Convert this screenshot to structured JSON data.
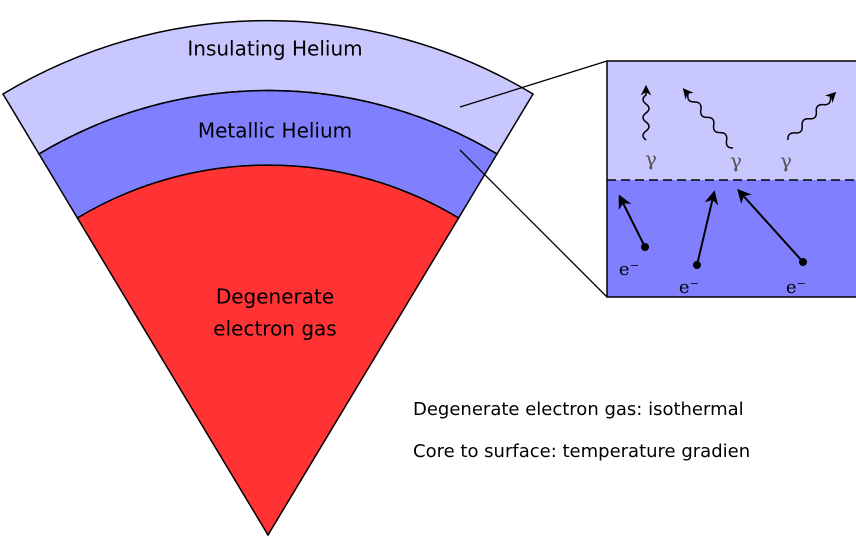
{
  "diagram": {
    "layers": [
      {
        "label": "Insulating Helium"
      },
      {
        "label": "Metallic Helium"
      },
      {
        "label_lines": [
          "Degenerate",
          "electron gas"
        ]
      }
    ],
    "inset": {
      "photons": [
        "γ",
        "γ",
        "γ"
      ],
      "electrons": [
        "e⁻",
        "e⁻",
        "e⁻"
      ]
    },
    "notes": [
      "Degenerate electron gas: isothermal",
      "Core to surface: temperature gradien"
    ]
  }
}
